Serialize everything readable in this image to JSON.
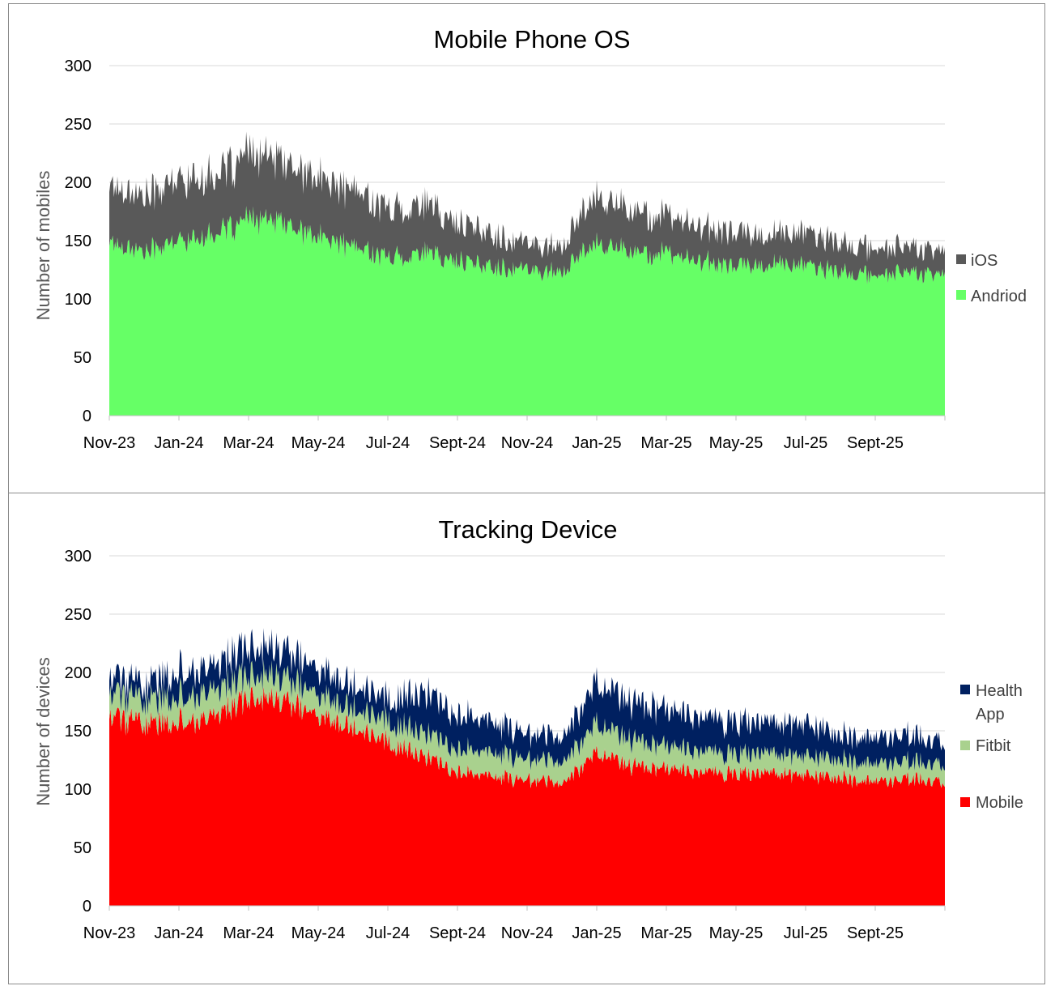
{
  "charts": [
    {
      "id": "mobile-os",
      "title": "Mobile Phone OS",
      "ylabel": "Number of mobiles",
      "y_ticks": [
        "0",
        "50",
        "100",
        "150",
        "200",
        "250",
        "300"
      ],
      "x_ticks": [
        "Nov-23",
        "Jan-24",
        "Mar-24",
        "May-24",
        "Jul-24",
        "Sept-24",
        "Nov-24",
        "Jan-25",
        "Mar-25",
        "May-25",
        "Jul-25",
        "Sept-25"
      ],
      "legend": [
        {
          "label": "iOS",
          "color": "#595959"
        },
        {
          "label": "Andriod",
          "color": "#66ff66"
        }
      ]
    },
    {
      "id": "tracking-device",
      "title": "Tracking Device",
      "ylabel": "Number of devices",
      "y_ticks": [
        "0",
        "50",
        "100",
        "150",
        "200",
        "250",
        "300"
      ],
      "x_ticks": [
        "Nov-23",
        "Jan-24",
        "Mar-24",
        "May-24",
        "Jul-24",
        "Sept-24",
        "Nov-24",
        "Jan-25",
        "Mar-25",
        "May-25",
        "Jul-25",
        "Sept-25"
      ],
      "legend": [
        {
          "label": "Health",
          "label2": "App",
          "color": "#002060"
        },
        {
          "label": "Fitbit",
          "color": "#a9d18e"
        },
        {
          "label": "Mobile",
          "color": "#ff0000"
        }
      ]
    }
  ],
  "chart_data": [
    {
      "type": "area",
      "stacked": true,
      "title": "Mobile Phone OS",
      "xlabel": "",
      "ylabel": "Number of mobiles",
      "ylim": [
        0,
        300
      ],
      "y_step": 50,
      "x": [
        "Nov-23",
        "Dec-23",
        "Jan-24",
        "Feb-24",
        "Mar-24",
        "Apr-24",
        "May-24",
        "Jun-24",
        "Jul-24",
        "Aug-24",
        "Sept-24",
        "Oct-24",
        "Nov-24",
        "Dec-24",
        "Jan-25",
        "Feb-25",
        "Mar-25",
        "Apr-25",
        "May-25",
        "Jun-25",
        "Jul-25",
        "Aug-25",
        "Sept-25",
        "Oct-25",
        "Nov-25"
      ],
      "x_tick_every": 2,
      "grid": true,
      "legend_position": "right",
      "series": [
        {
          "name": "Andriod",
          "color": "#66ff66",
          "values": [
            150,
            140,
            150,
            155,
            168,
            165,
            152,
            145,
            135,
            140,
            132,
            128,
            125,
            122,
            150,
            140,
            138,
            132,
            128,
            130,
            128,
            122,
            120,
            123,
            120
          ]
        },
        {
          "name": "iOS",
          "color": "#595959",
          "values": [
            50,
            48,
            52,
            50,
            55,
            53,
            50,
            48,
            42,
            42,
            33,
            28,
            23,
            22,
            42,
            35,
            32,
            30,
            28,
            26,
            28,
            25,
            23,
            22,
            20
          ]
        }
      ]
    },
    {
      "type": "area",
      "stacked": true,
      "title": "Tracking Device",
      "xlabel": "",
      "ylabel": "Number of devices",
      "ylim": [
        0,
        300
      ],
      "y_step": 50,
      "x": [
        "Nov-23",
        "Dec-23",
        "Jan-24",
        "Feb-24",
        "Mar-24",
        "Apr-24",
        "May-24",
        "Jun-24",
        "Jul-24",
        "Aug-24",
        "Sept-24",
        "Oct-24",
        "Nov-24",
        "Dec-24",
        "Jan-25",
        "Feb-25",
        "Mar-25",
        "Apr-25",
        "May-25",
        "Jun-25",
        "Jul-25",
        "Aug-25",
        "Sept-25",
        "Oct-25",
        "Nov-25"
      ],
      "x_tick_every": 2,
      "grid": true,
      "legend_position": "right",
      "series": [
        {
          "name": "Mobile",
          "color": "#ff0000",
          "values": [
            165,
            155,
            158,
            162,
            180,
            175,
            162,
            155,
            140,
            128,
            115,
            110,
            108,
            105,
            132,
            120,
            118,
            115,
            112,
            113,
            112,
            110,
            106,
            108,
            106
          ]
        },
        {
          "name": "Fitbit",
          "color": "#a9d18e",
          "values": [
            20,
            20,
            22,
            22,
            20,
            20,
            18,
            17,
            18,
            20,
            20,
            20,
            18,
            18,
            25,
            22,
            20,
            18,
            17,
            17,
            16,
            16,
            15,
            15,
            15
          ]
        },
        {
          "name": "Health App",
          "color": "#002060",
          "values": [
            15,
            13,
            22,
            21,
            25,
            23,
            22,
            21,
            19,
            34,
            30,
            26,
            22,
            21,
            35,
            33,
            32,
            29,
            27,
            26,
            28,
            21,
            22,
            22,
            19
          ]
        }
      ]
    }
  ]
}
